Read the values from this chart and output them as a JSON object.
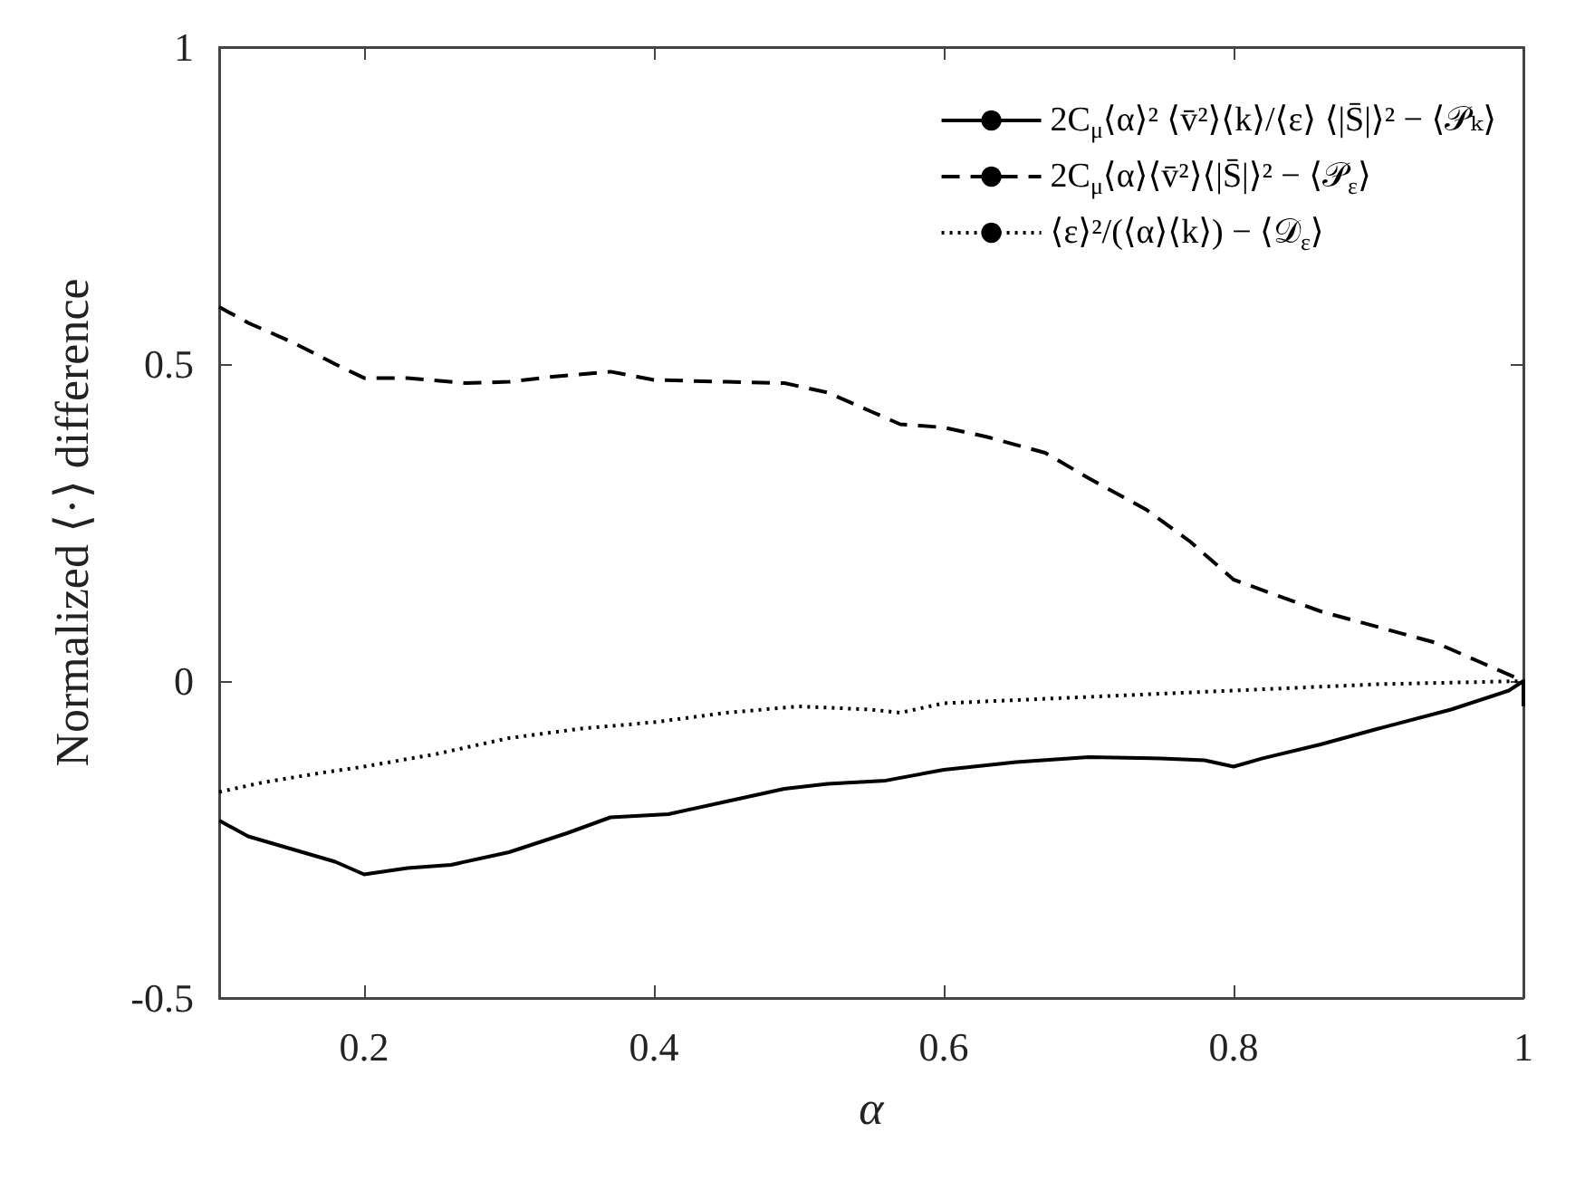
{
  "chart_data": {
    "type": "line",
    "xlabel": "α",
    "ylabel": "Normalized ⟨·⟩ difference",
    "xlim": [
      0.1,
      1
    ],
    "xticks": [
      0.2,
      0.4,
      0.6,
      0.8,
      1
    ],
    "ylim": [
      -0.5,
      1
    ],
    "yticks": [
      -0.5,
      0,
      0.5,
      1
    ],
    "grid": false,
    "legend": "top right",
    "marker": "none",
    "series": [
      {
        "name": "2C$_{μ}$⟨α⟩² ⟨v̄²⟩⟨k⟩/⟨ε⟩ ⟨|S̄|⟩² − ⟨𝒫ₖ⟩",
        "color": "#000000",
        "line_style": "solid",
        "x": [
          0.1,
          0.12,
          0.15,
          0.18,
          0.2,
          0.23,
          0.26,
          0.3,
          0.34,
          0.37,
          0.41,
          0.45,
          0.49,
          0.52,
          0.56,
          0.6,
          0.65,
          0.7,
          0.75,
          0.78,
          0.8,
          0.82,
          0.86,
          0.9,
          0.95,
          0.99,
          1,
          1
        ],
        "values": [
          -0.22,
          -0.245,
          -0.265,
          -0.285,
          -0.305,
          -0.295,
          -0.29,
          -0.27,
          -0.24,
          -0.215,
          -0.21,
          -0.19,
          -0.17,
          -0.162,
          -0.157,
          -0.14,
          -0.128,
          -0.12,
          -0.122,
          -0.125,
          -0.135,
          -0.122,
          -0.1,
          -0.075,
          -0.045,
          -0.015,
          0,
          -0.04
        ]
      },
      {
        "name": "2C$_{μ}$⟨α⟩⟨v̄²⟩⟨|S̄|⟩² − ⟨𝒫$_{ε}$⟩",
        "color": "#000000",
        "line_style": "dashed",
        "x": [
          0.1,
          0.12,
          0.15,
          0.18,
          0.2,
          0.23,
          0.27,
          0.3,
          0.33,
          0.37,
          0.4,
          0.45,
          0.49,
          0.52,
          0.55,
          0.57,
          0.6,
          0.63,
          0.67,
          0.7,
          0.74,
          0.77,
          0.8,
          0.83,
          0.86,
          0.9,
          0.94,
          0.97,
          1
        ],
        "values": [
          0.59,
          0.565,
          0.535,
          0.5,
          0.478,
          0.478,
          0.47,
          0.472,
          0.48,
          0.488,
          0.475,
          0.472,
          0.47,
          0.455,
          0.425,
          0.405,
          0.4,
          0.385,
          0.36,
          0.32,
          0.27,
          0.22,
          0.16,
          0.135,
          0.11,
          0.085,
          0.06,
          0.03,
          0
        ]
      },
      {
        "name": "⟨ε⟩²/(⟨α⟩⟨k⟩) − ⟨𝒟$_{ε}$⟩",
        "color": "#000000",
        "line_style": "dotted",
        "x": [
          0.1,
          0.13,
          0.17,
          0.2,
          0.25,
          0.3,
          0.35,
          0.4,
          0.45,
          0.5,
          0.55,
          0.57,
          0.6,
          0.7,
          0.8,
          0.9,
          1
        ],
        "values": [
          -0.175,
          -0.16,
          -0.145,
          -0.135,
          -0.115,
          -0.09,
          -0.075,
          -0.065,
          -0.05,
          -0.04,
          -0.045,
          -0.05,
          -0.035,
          -0.025,
          -0.015,
          -0.005,
          0
        ]
      }
    ]
  }
}
